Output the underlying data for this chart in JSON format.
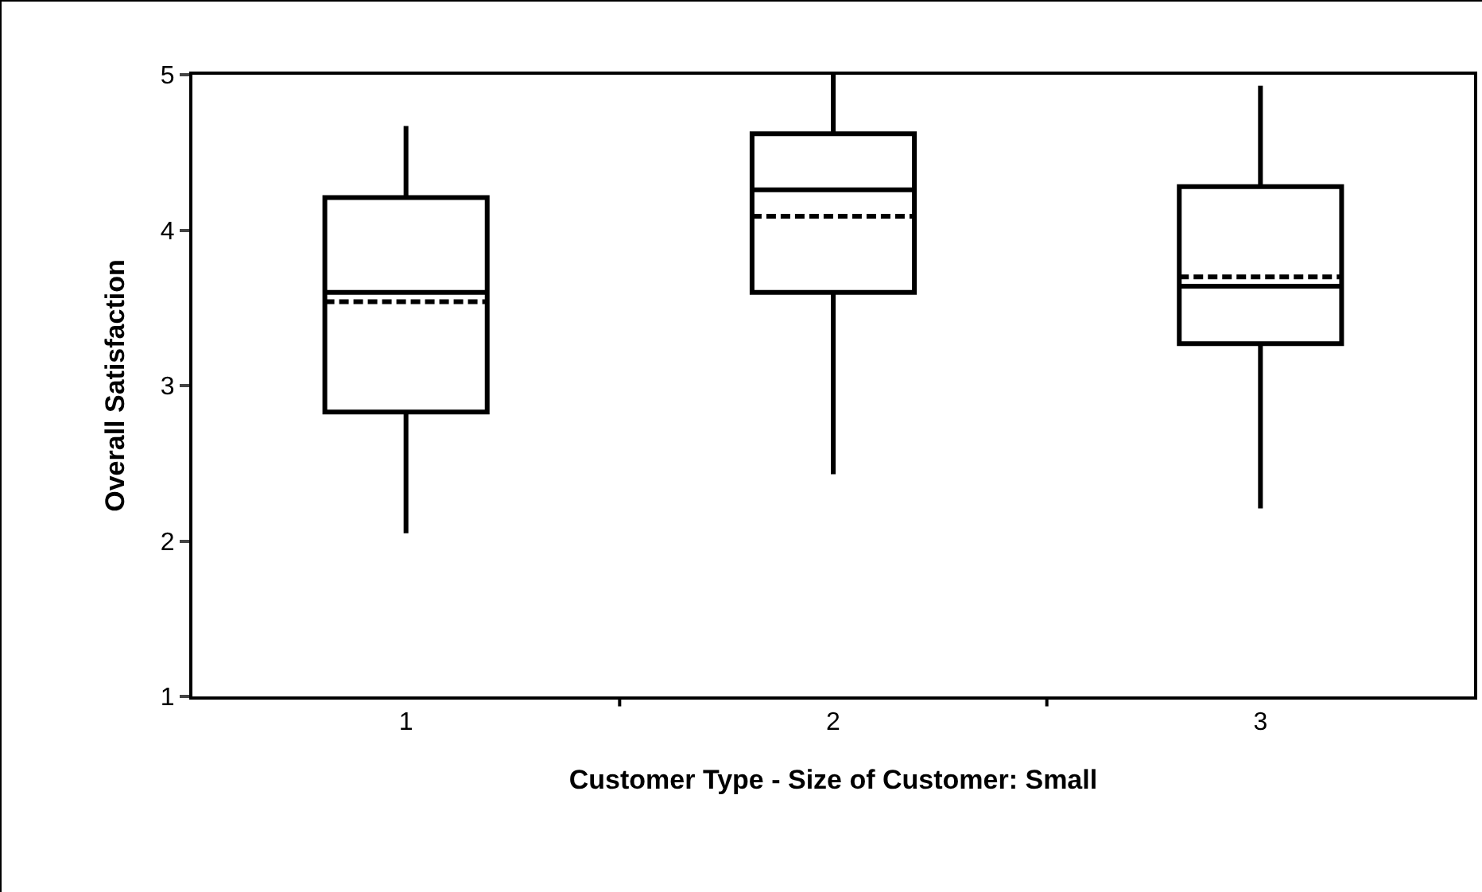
{
  "chart_data": {
    "type": "box",
    "xlabel": "Customer Type - Size of Customer: Small",
    "ylabel": "Overall Satisfaction",
    "categories": [
      "1",
      "2",
      "3"
    ],
    "boxes": [
      {
        "low": 2.05,
        "q1": 2.83,
        "median": 3.6,
        "q3": 4.21,
        "high": 4.67,
        "mean": 3.54
      },
      {
        "low": 2.43,
        "q1": 3.6,
        "median": 4.26,
        "q3": 4.62,
        "high": 5.0,
        "mean": 4.09
      },
      {
        "low": 2.21,
        "q1": 3.27,
        "median": 3.64,
        "q3": 4.28,
        "high": 4.93,
        "mean": 3.7
      }
    ],
    "color": "#000000",
    "ylim": [
      1,
      5
    ],
    "yticks": [
      1,
      2,
      3,
      4,
      5
    ],
    "grid": false
  }
}
